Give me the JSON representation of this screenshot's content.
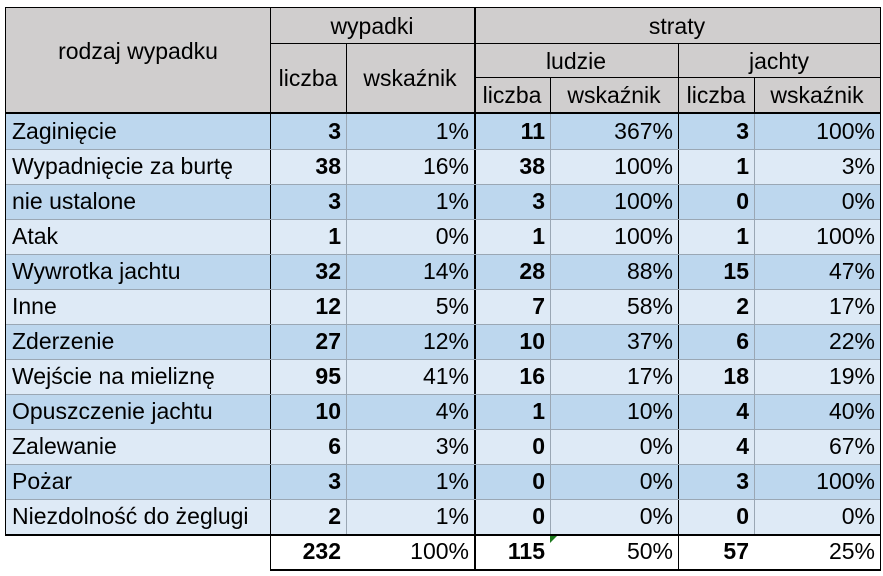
{
  "header": {
    "group_label": "rodzaj wypadku",
    "wypadki": "wypadki",
    "straty": "straty",
    "ludzie": "ludzie",
    "jachty": "jachty",
    "liczba": "liczba",
    "wskaznik": "wskaźnik"
  },
  "rows": [
    {
      "label": "Zaginięcie",
      "w_count": "3",
      "w_pct": "1%",
      "l_count": "11",
      "l_pct": "367%",
      "j_count": "3",
      "j_pct": "100%"
    },
    {
      "label": "Wypadnięcie za burtę",
      "w_count": "38",
      "w_pct": "16%",
      "l_count": "38",
      "l_pct": "100%",
      "j_count": "1",
      "j_pct": "3%"
    },
    {
      "label": "nie ustalone",
      "w_count": "3",
      "w_pct": "1%",
      "l_count": "3",
      "l_pct": "100%",
      "j_count": "0",
      "j_pct": "0%"
    },
    {
      "label": "Atak",
      "w_count": "1",
      "w_pct": "0%",
      "l_count": "1",
      "l_pct": "100%",
      "j_count": "1",
      "j_pct": "100%"
    },
    {
      "label": "Wywrotka jachtu",
      "w_count": "32",
      "w_pct": "14%",
      "l_count": "28",
      "l_pct": "88%",
      "j_count": "15",
      "j_pct": "47%"
    },
    {
      "label": "Inne",
      "w_count": "12",
      "w_pct": "5%",
      "l_count": "7",
      "l_pct": "58%",
      "j_count": "2",
      "j_pct": "17%"
    },
    {
      "label": "Zderzenie",
      "w_count": "27",
      "w_pct": "12%",
      "l_count": "10",
      "l_pct": "37%",
      "j_count": "6",
      "j_pct": "22%"
    },
    {
      "label": "Wejście na mieliznę",
      "w_count": "95",
      "w_pct": "41%",
      "l_count": "16",
      "l_pct": "17%",
      "j_count": "18",
      "j_pct": "19%"
    },
    {
      "label": "Opuszczenie jachtu",
      "w_count": "10",
      "w_pct": "4%",
      "l_count": "1",
      "l_pct": "10%",
      "j_count": "4",
      "j_pct": "40%"
    },
    {
      "label": "Zalewanie",
      "w_count": "6",
      "w_pct": "3%",
      "l_count": "0",
      "l_pct": "0%",
      "j_count": "4",
      "j_pct": "67%"
    },
    {
      "label": "Pożar",
      "w_count": "3",
      "w_pct": "1%",
      "l_count": "0",
      "l_pct": "0%",
      "j_count": "3",
      "j_pct": "100%"
    },
    {
      "label": "Niezdolność do żeglugi",
      "w_count": "2",
      "w_pct": "1%",
      "l_count": "0",
      "l_pct": "0%",
      "j_count": "0",
      "j_pct": "0%"
    }
  ],
  "totals": {
    "w_count": "232",
    "w_pct": "100%",
    "l_count": "115",
    "l_pct": "50%",
    "j_count": "57",
    "j_pct": "25%"
  },
  "colors": {
    "header_bg": "#d0cece",
    "row_blue": "#bdd7ee",
    "row_light": "#deeaf6",
    "border": "#000000",
    "comment_flag": "#1e7a1e"
  }
}
